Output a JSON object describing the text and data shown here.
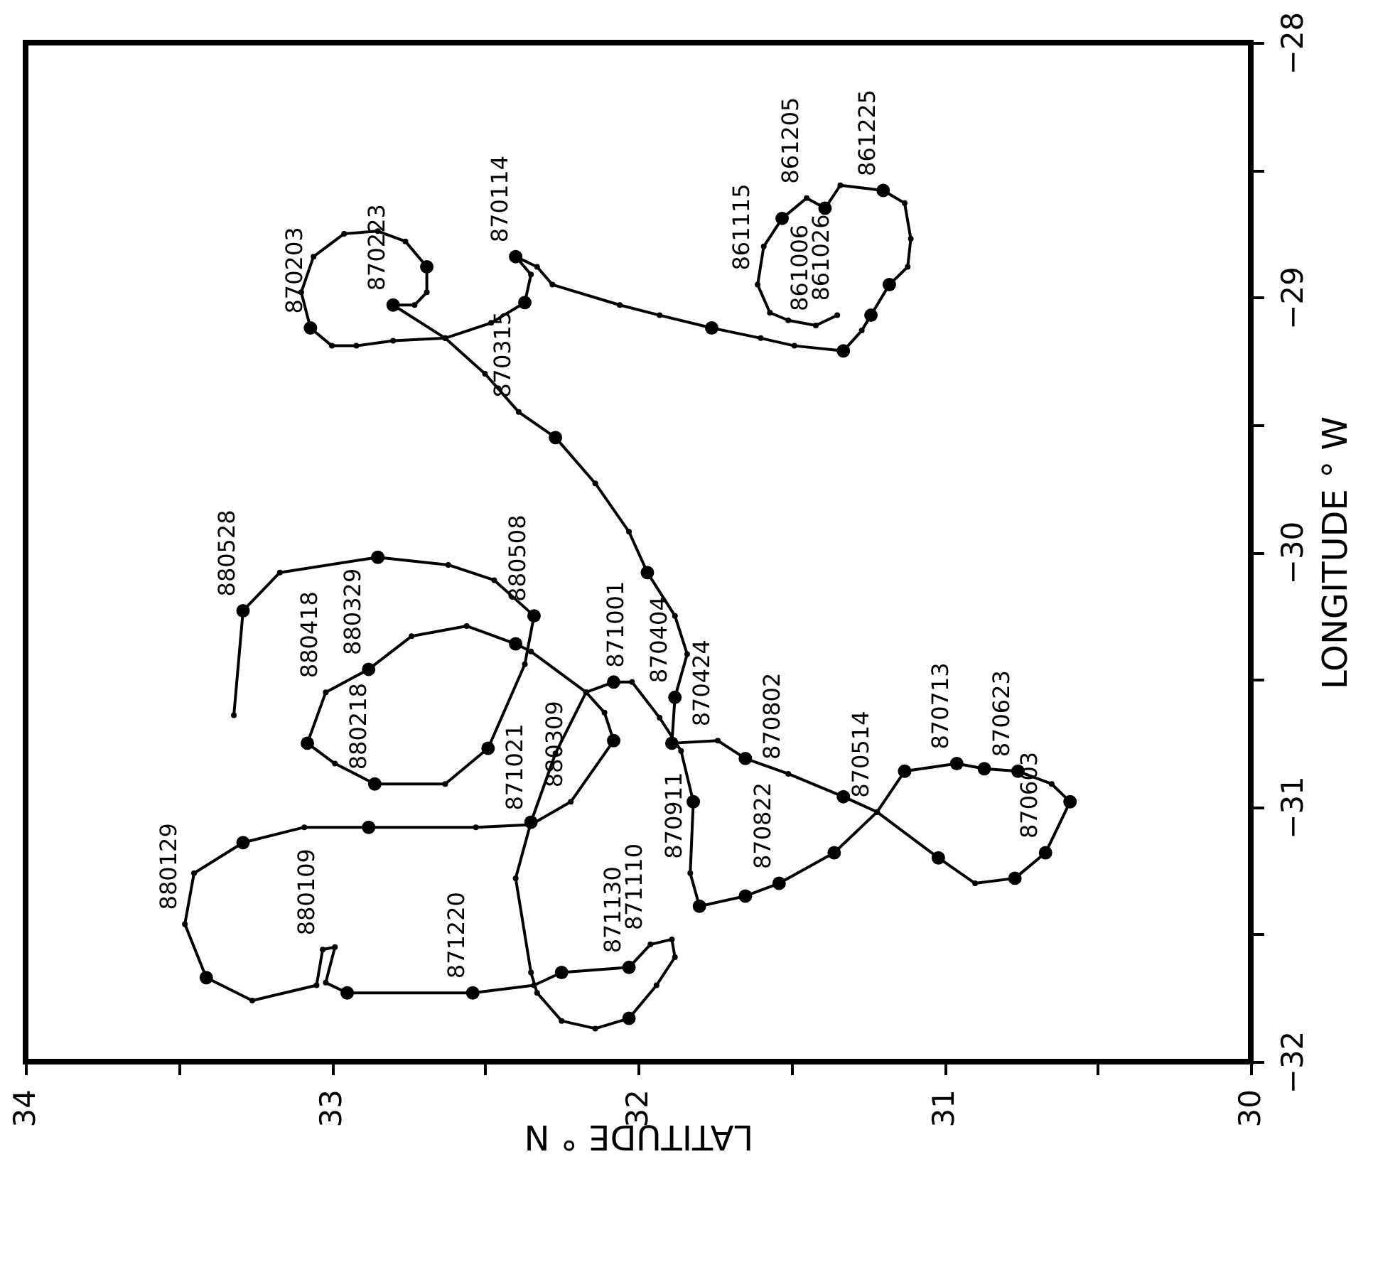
{
  "chart_data": {
    "type": "line",
    "xlabel": "LATITUDE ° N",
    "ylabel": "LONGITUDE ° W",
    "xlim": [
      34,
      30
    ],
    "ylim": [
      -32,
      -28
    ],
    "xticks": [
      34,
      {
        "value": 33.5,
        "label": null
      },
      33,
      {
        "value": 32.5,
        "label": null
      },
      32,
      {
        "value": 31.5,
        "label": null
      },
      31,
      {
        "value": 30.5,
        "label": null
      },
      30
    ],
    "yticks": [
      {
        "value": -32,
        "label": "−32"
      },
      {
        "value": -31.5,
        "label": null
      },
      {
        "value": -31,
        "label": "−31"
      },
      {
        "value": -30.5,
        "label": null
      },
      {
        "value": -30,
        "label": "−30"
      },
      {
        "value": -29.5,
        "label": null
      },
      {
        "value": -29,
        "label": "−29"
      },
      {
        "value": -28.5,
        "label": null
      },
      {
        "value": -28,
        "label": "−28"
      }
    ],
    "grid": false,
    "marker": "circle",
    "line_style": "solid",
    "series": [
      {
        "color": "#000000",
        "x": [
          31.35,
          31.42,
          31.51,
          31.57,
          31.61,
          31.59,
          31.53,
          31.45,
          31.39,
          31.34,
          31.2,
          31.13,
          31.11,
          31.12,
          31.18,
          31.24,
          31.27,
          31.33,
          31.49,
          31.6,
          31.76,
          31.93,
          32.06,
          32.28,
          32.33,
          32.4,
          32.35,
          32.37,
          32.48,
          32.63,
          32.8,
          32.92,
          33.0,
          33.07,
          33.1,
          33.06,
          32.96,
          32.85,
          32.76,
          32.69,
          32.69,
          32.73,
          32.8,
          32.63,
          32.5,
          32.39,
          32.27,
          32.14,
          32.03,
          31.97,
          31.88,
          31.84,
          31.88,
          31.89,
          31.74,
          31.65,
          31.51,
          31.33,
          31.22,
          31.02,
          30.9,
          30.77,
          30.67,
          30.59,
          30.65,
          30.76,
          30.87,
          30.96,
          31.13,
          31.22,
          31.36,
          31.54,
          31.65,
          31.8,
          31.83,
          31.82,
          31.86,
          31.93,
          32.02,
          32.08,
          32.17,
          32.27,
          32.35,
          32.4,
          32.35,
          32.33,
          32.25,
          32.14,
          32.03,
          31.94,
          31.88,
          31.89,
          31.96,
          32.03,
          32.25,
          32.34,
          32.54,
          32.95,
          33.02,
          32.99,
          33.03,
          33.05,
          33.26,
          33.41,
          33.48,
          33.45,
          33.29,
          33.09,
          32.88,
          32.53,
          32.35,
          32.22,
          32.08,
          32.11,
          32.17,
          32.35,
          32.4,
          32.56,
          32.74,
          32.88,
          33.02,
          33.08,
          32.99,
          32.86,
          32.63,
          32.49,
          32.37,
          32.34,
          32.47,
          32.62,
          32.85,
          33.17,
          33.29,
          33.32
        ],
        "values": [
          -29.07,
          -29.11,
          -29.09,
          -29.06,
          -28.95,
          -28.8,
          -28.69,
          -28.61,
          -28.65,
          -28.56,
          -28.58,
          -28.63,
          -28.77,
          -28.88,
          -28.95,
          -29.07,
          -29.13,
          -29.21,
          -29.19,
          -29.16,
          -29.12,
          -29.07,
          -29.03,
          -28.95,
          -28.88,
          -28.84,
          -28.91,
          -29.02,
          -29.1,
          -29.16,
          -29.17,
          -29.19,
          -29.19,
          -29.12,
          -28.98,
          -28.84,
          -28.75,
          -28.74,
          -28.78,
          -28.88,
          -28.98,
          -29.03,
          -29.03,
          -29.16,
          -29.3,
          -29.45,
          -29.55,
          -29.73,
          -29.92,
          -30.08,
          -30.25,
          -30.4,
          -30.57,
          -30.75,
          -30.74,
          -30.81,
          -30.87,
          -30.96,
          -31.02,
          -31.2,
          -31.3,
          -31.28,
          -31.18,
          -30.98,
          -30.91,
          -30.86,
          -30.85,
          -30.83,
          -30.86,
          -31.02,
          -31.18,
          -31.3,
          -31.35,
          -31.39,
          -31.26,
          -30.98,
          -30.78,
          -30.65,
          -30.51,
          -30.51,
          -30.55,
          -30.79,
          -31.06,
          -31.28,
          -31.65,
          -31.73,
          -31.84,
          -31.87,
          -31.83,
          -31.7,
          -31.59,
          -31.52,
          -31.54,
          -31.63,
          -31.65,
          -31.7,
          -31.73,
          -31.73,
          -31.69,
          -31.55,
          -31.56,
          -31.7,
          -31.76,
          -31.67,
          -31.46,
          -31.26,
          -31.14,
          -31.08,
          -31.08,
          -31.08,
          -31.07,
          -30.98,
          -30.74,
          -30.63,
          -30.55,
          -30.39,
          -30.36,
          -30.29,
          -30.33,
          -30.46,
          -30.55,
          -30.75,
          -30.83,
          -30.91,
          -30.91,
          -30.77,
          -30.44,
          -30.25,
          -30.11,
          -30.05,
          -30.02,
          -30.08,
          -30.23,
          -30.64
        ]
      },
      {
        "type": "scatter",
        "color": "#000000",
        "x": [
          31.53,
          31.39,
          31.2,
          31.18,
          31.24,
          31.33,
          31.76,
          32.4,
          32.37,
          33.07,
          32.69,
          32.8,
          32.27,
          31.97,
          31.88,
          31.89,
          31.65,
          31.33,
          31.02,
          30.77,
          30.67,
          30.59,
          30.76,
          30.87,
          30.96,
          31.13,
          31.36,
          31.54,
          31.65,
          31.8,
          31.82,
          32.08,
          32.35,
          32.03,
          32.03,
          32.25,
          32.54,
          32.95,
          33.41,
          33.29,
          32.88,
          32.08,
          32.4,
          32.88,
          33.08,
          32.86,
          32.49,
          32.34,
          32.85,
          33.29
        ],
        "values": [
          -28.69,
          -28.65,
          -28.58,
          -28.95,
          -29.07,
          -29.21,
          -29.12,
          -28.84,
          -29.02,
          -29.12,
          -28.88,
          -29.03,
          -29.55,
          -30.08,
          -30.57,
          -30.75,
          -30.81,
          -30.96,
          -31.2,
          -31.28,
          -31.18,
          -30.98,
          -30.86,
          -30.85,
          -30.83,
          -30.86,
          -31.18,
          -31.3,
          -31.35,
          -31.39,
          -30.98,
          -30.51,
          -31.06,
          -31.83,
          -31.63,
          -31.65,
          -31.73,
          -31.73,
          -31.67,
          -31.14,
          -31.08,
          -30.74,
          -30.36,
          -30.46,
          -30.75,
          -30.91,
          -30.77,
          -30.25,
          -30.02,
          -30.23
        ]
      }
    ],
    "annotations": [
      {
        "text": "861006",
        "x": 31.42,
        "y": -29.11
      },
      {
        "text": "861026",
        "x": 31.35,
        "y": -29.07
      },
      {
        "text": "861115",
        "x": 31.61,
        "y": -28.95
      },
      {
        "text": "861205",
        "x": 31.45,
        "y": -28.61
      },
      {
        "text": "861225",
        "x": 31.2,
        "y": -28.58
      },
      {
        "text": "870114",
        "x": 32.4,
        "y": -28.84
      },
      {
        "text": "870203",
        "x": 33.07,
        "y": -29.12
      },
      {
        "text": "870223",
        "x": 32.8,
        "y": -29.03
      },
      {
        "text": "870315",
        "x": 32.39,
        "y": -29.45
      },
      {
        "text": "870404",
        "x": 31.88,
        "y": -30.57
      },
      {
        "text": "870424",
        "x": 31.74,
        "y": -30.74
      },
      {
        "text": "870514",
        "x": 31.22,
        "y": -31.02
      },
      {
        "text": "870603",
        "x": 30.67,
        "y": -31.18
      },
      {
        "text": "870623",
        "x": 30.76,
        "y": -30.86
      },
      {
        "text": "870713",
        "x": 30.96,
        "y": -30.83
      },
      {
        "text": "870802",
        "x": 31.51,
        "y": -30.87
      },
      {
        "text": "870822",
        "x": 31.54,
        "y": -31.3
      },
      {
        "text": "870911",
        "x": 31.83,
        "y": -31.26
      },
      {
        "text": "871001",
        "x": 32.02,
        "y": -30.51
      },
      {
        "text": "871021",
        "x": 32.35,
        "y": -31.07
      },
      {
        "text": "871110",
        "x": 31.96,
        "y": -31.54
      },
      {
        "text": "871130",
        "x": 32.03,
        "y": -31.63
      },
      {
        "text": "871220",
        "x": 32.54,
        "y": -31.73
      },
      {
        "text": "880109",
        "x": 33.03,
        "y": -31.56
      },
      {
        "text": "880129",
        "x": 33.48,
        "y": -31.46
      },
      {
        "text": "880218",
        "x": 32.86,
        "y": -30.91
      },
      {
        "text": "880309",
        "x": 32.22,
        "y": -30.98
      },
      {
        "text": "880329",
        "x": 32.88,
        "y": -30.46
      },
      {
        "text": "880418",
        "x": 33.02,
        "y": -30.55
      },
      {
        "text": "880508",
        "x": 32.34,
        "y": -30.25
      },
      {
        "text": "880528",
        "x": 33.29,
        "y": -30.23
      }
    ]
  }
}
